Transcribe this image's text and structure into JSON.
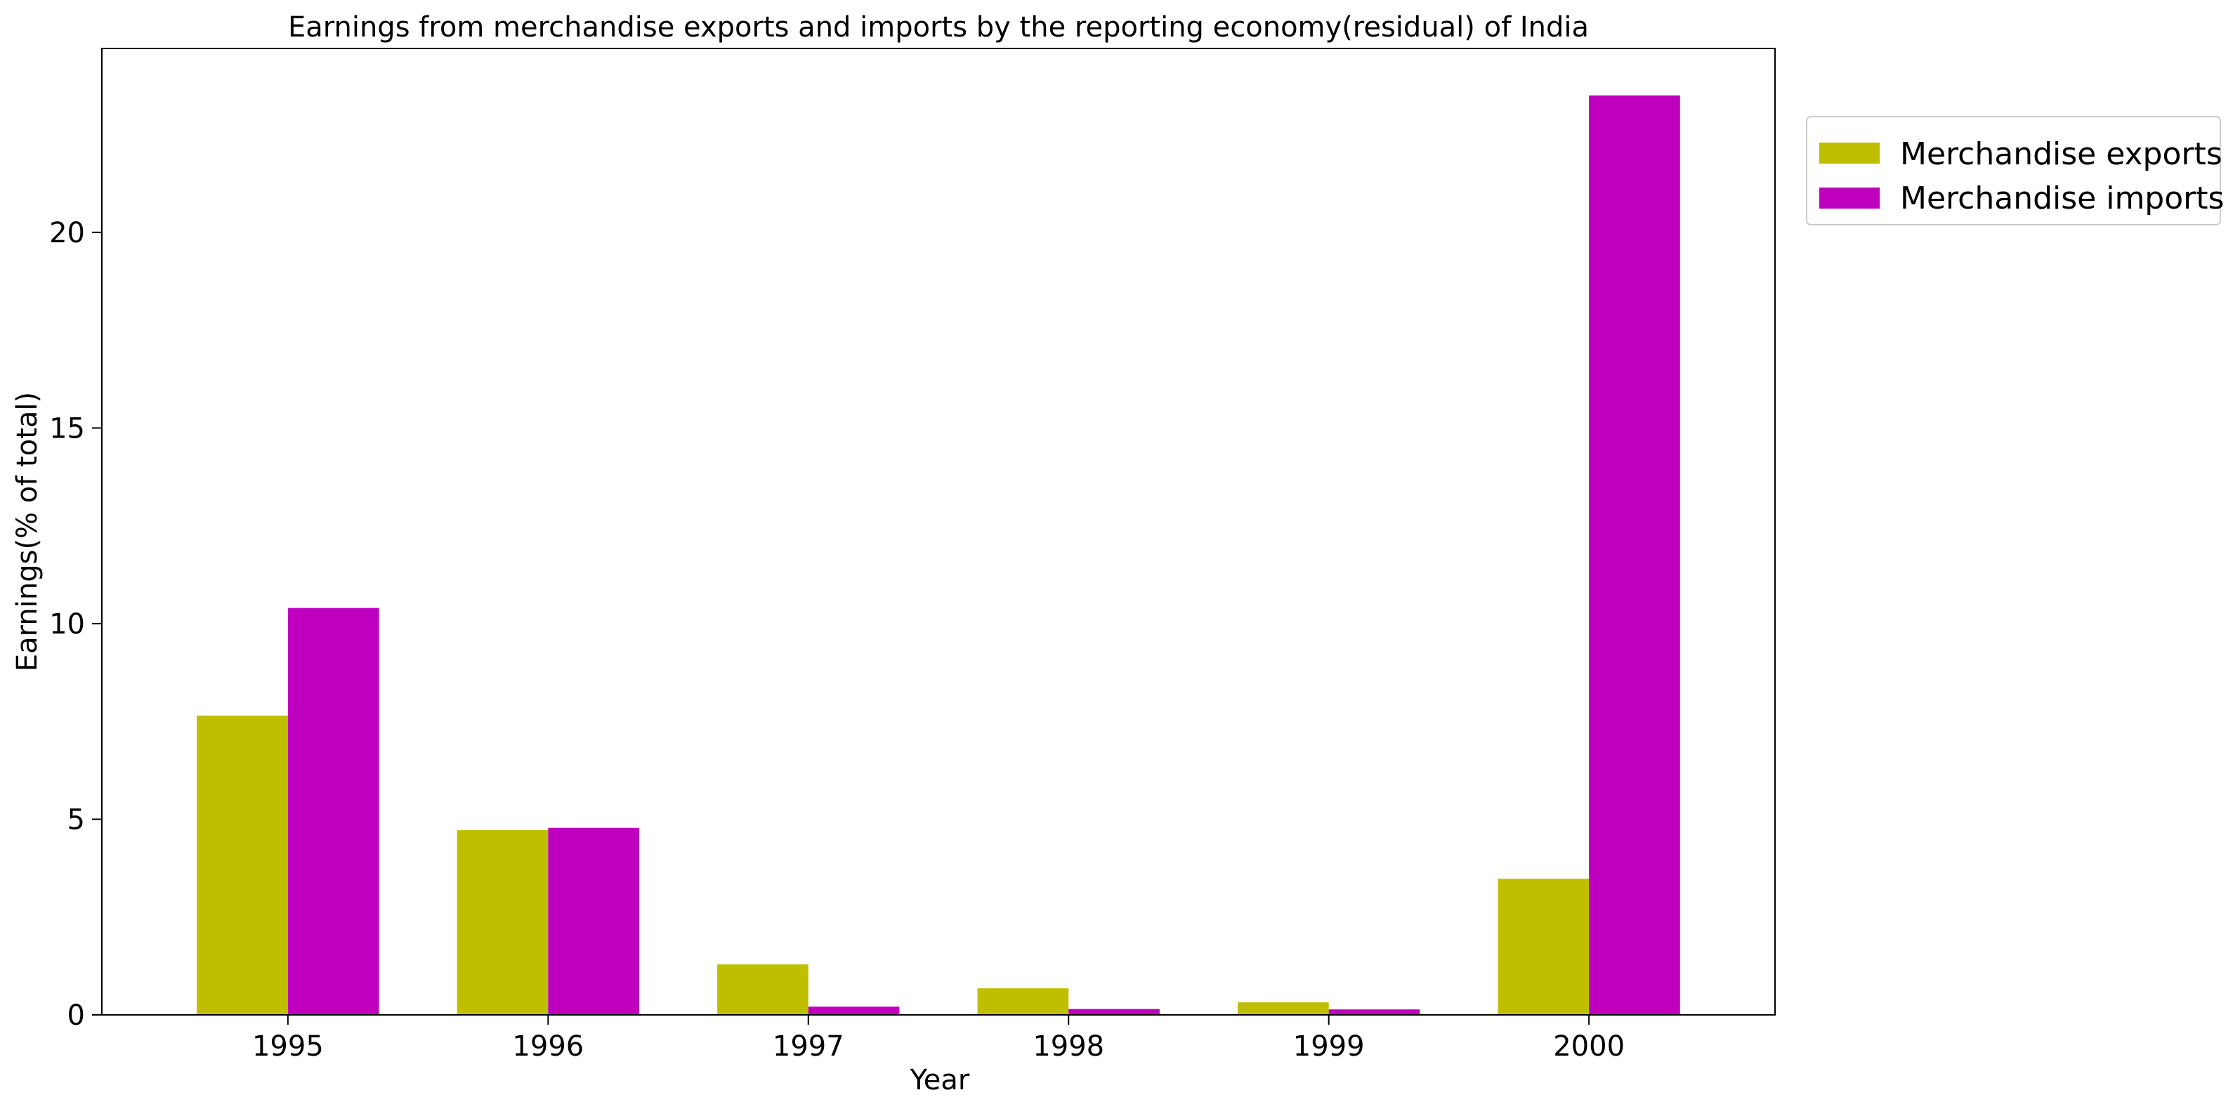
{
  "chart_data": {
    "type": "bar",
    "title": "Earnings from merchandise exports and imports by the reporting economy(residual) of India",
    "xlabel": "Year",
    "ylabel": "Earnings(% of total)",
    "categories": [
      "1995",
      "1996",
      "1997",
      "1998",
      "1999",
      "2000"
    ],
    "series": [
      {
        "name": "Merchandise exports",
        "color": "#bfbf00",
        "values": [
          7.65,
          4.72,
          1.29,
          0.68,
          0.32,
          3.48
        ]
      },
      {
        "name": "Merchandise imports",
        "color": "#bf00bf",
        "values": [
          10.4,
          4.78,
          0.21,
          0.15,
          0.14,
          23.5
        ]
      }
    ],
    "ylim": [
      0,
      24.7
    ],
    "yticks": [
      0,
      5,
      10,
      15,
      20
    ],
    "grid": false,
    "legend_position": "outside-top-right"
  }
}
